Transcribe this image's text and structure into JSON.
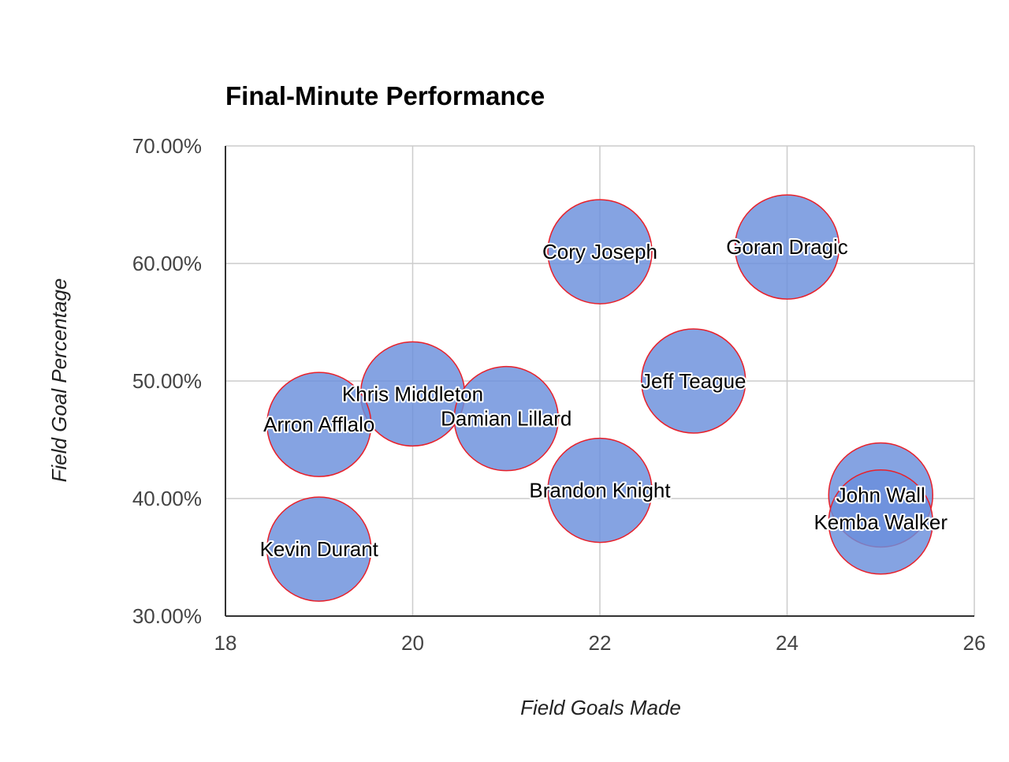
{
  "chart_data": {
    "type": "scatter",
    "title": "Final-Minute Performance",
    "xlabel": "Field Goals Made",
    "ylabel": "Field Goal Percentage",
    "xlim": [
      18,
      26
    ],
    "ylim": [
      30,
      70
    ],
    "x_ticks": [
      18,
      20,
      22,
      24,
      26
    ],
    "y_ticks": [
      30,
      40,
      50,
      60,
      70
    ],
    "y_tick_labels": [
      "30.00%",
      "40.00%",
      "50.00%",
      "60.00%",
      "70.00%"
    ],
    "grid": true,
    "points": [
      {
        "label": "Cory Joseph",
        "x": 22,
        "y": 61.0
      },
      {
        "label": "Goran Dragic",
        "x": 24,
        "y": 61.4
      },
      {
        "label": "Jeff Teague",
        "x": 23,
        "y": 50.0
      },
      {
        "label": "Khris Middleton",
        "x": 20,
        "y": 48.9
      },
      {
        "label": "Damian Lillard",
        "x": 21,
        "y": 46.8
      },
      {
        "label": "Arron Afflalo",
        "x": 19,
        "y": 46.3
      },
      {
        "label": "Brandon Knight",
        "x": 22,
        "y": 40.7
      },
      {
        "label": "John Wall",
        "x": 25,
        "y": 40.3
      },
      {
        "label": "Kemba Walker",
        "x": 25,
        "y": 38.0
      },
      {
        "label": "Kevin Durant",
        "x": 19,
        "y": 35.7
      }
    ],
    "colors": {
      "bubble_fill": "#6a8fdc",
      "bubble_stroke": "#e8202a",
      "grid": "#cccccc",
      "axis": "#333333"
    }
  }
}
